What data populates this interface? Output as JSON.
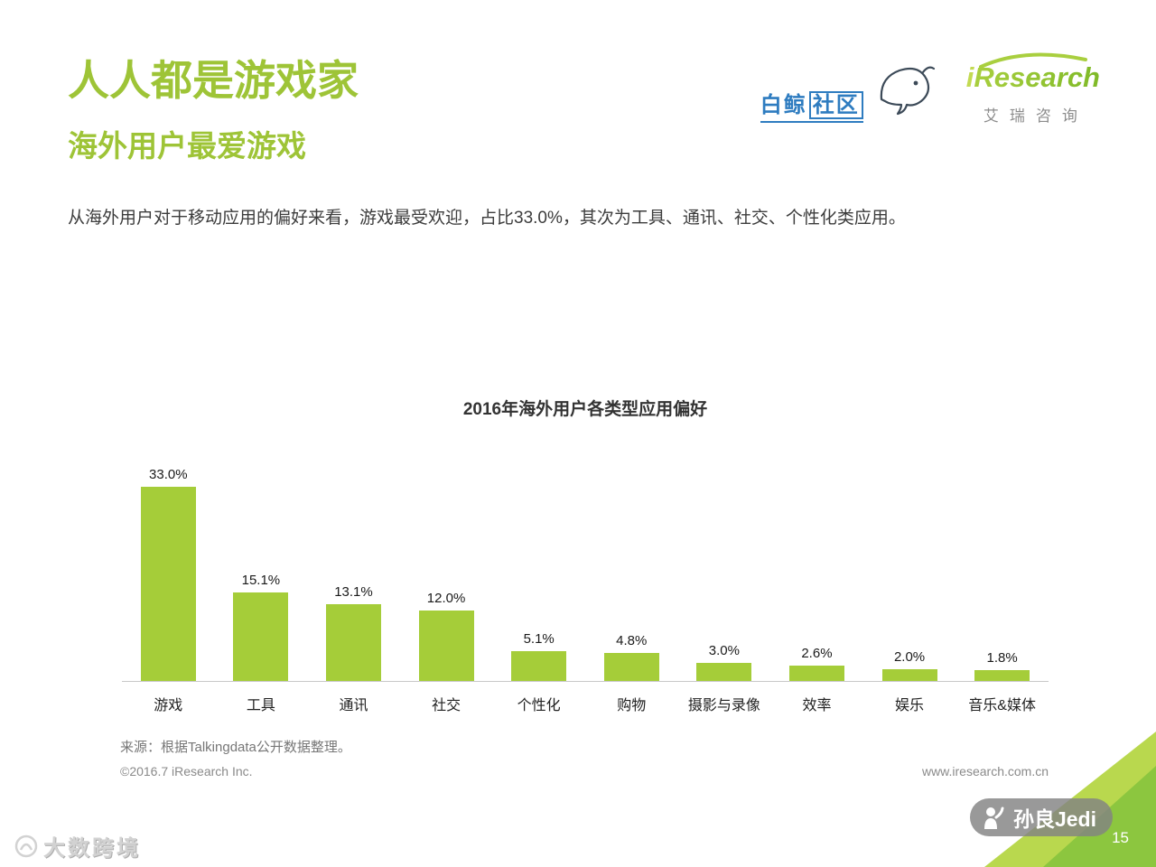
{
  "header": {
    "title": "人人都是游戏家",
    "subtitle": "海外用户最爱游戏",
    "description": "从海外用户对于移动应用的偏好来看，游戏最受欢迎，占比33.0%，其次为工具、通讯、社交、个性化类应用。",
    "baijing_logo_part1": "白鲸",
    "baijing_logo_part2": "社区",
    "iresearch_logo_i": "i",
    "iresearch_logo_rest": "Research",
    "iresearch_logo_cn": "艾瑞咨询"
  },
  "chart_data": {
    "type": "bar",
    "title": "2016年海外用户各类型应用偏好",
    "categories": [
      "游戏",
      "工具",
      "通讯",
      "社交",
      "个性化",
      "购物",
      "摄影与录像",
      "效率",
      "娱乐",
      "音乐&媒体"
    ],
    "values": [
      33.0,
      15.1,
      13.1,
      12.0,
      5.1,
      4.8,
      3.0,
      2.6,
      2.0,
      1.8
    ],
    "labels": [
      "33.0%",
      "15.1%",
      "13.1%",
      "12.0%",
      "5.1%",
      "4.8%",
      "3.0%",
      "2.6%",
      "2.0%",
      "1.8%"
    ],
    "xlabel": "",
    "ylabel": "",
    "ylim": [
      0,
      35
    ],
    "grid": false,
    "legend": false,
    "bar_color": "#a5cd39"
  },
  "footer": {
    "source": "来源：根据Talkingdata公开数据整理。",
    "copyright": "©2016.7 iResearch Inc.",
    "website": "www.iresearch.com.cn",
    "page_number": "15"
  },
  "watermarks": {
    "bottom_right_pill": "孙良Jedi",
    "bottom_left": "大数跨境"
  },
  "colors": {
    "accent_green": "#9ec437",
    "bar_green": "#a5cd39",
    "logo_blue": "#2e7cc0"
  }
}
